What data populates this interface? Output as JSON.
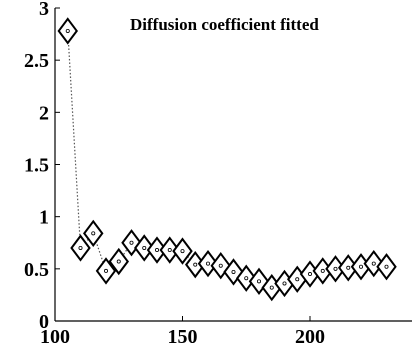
{
  "chart_data": {
    "type": "line",
    "title": "Diffusion coefficient fitted",
    "xlabel": "",
    "ylabel": "",
    "xlim": [
      100,
      240
    ],
    "ylim": [
      0,
      3
    ],
    "xticks": [
      100,
      150,
      200
    ],
    "xtick_labels": [
      "100",
      "150",
      "200"
    ],
    "yticks": [
      0,
      0.5,
      1,
      1.5,
      2,
      2.5,
      3
    ],
    "ytick_labels": [
      "0",
      "0.5",
      "1",
      "1.5",
      "2",
      "2.5",
      "3"
    ],
    "grid": false,
    "legend": "none",
    "marker": "diamond",
    "line_style": "dotted",
    "series": [
      {
        "x": [
          105,
          110,
          115,
          120,
          125,
          130,
          135,
          140,
          145,
          150,
          155,
          160,
          165,
          170,
          175,
          180,
          185,
          190,
          195,
          200,
          205,
          210,
          215,
          220,
          225,
          230
        ],
        "y": [
          2.78,
          0.7,
          0.84,
          0.48,
          0.57,
          0.75,
          0.7,
          0.68,
          0.68,
          0.67,
          0.54,
          0.55,
          0.53,
          0.47,
          0.41,
          0.38,
          0.32,
          0.36,
          0.4,
          0.45,
          0.48,
          0.5,
          0.51,
          0.52,
          0.55,
          0.52
        ]
      }
    ],
    "colors": {
      "marker_edge": "#000000",
      "marker_fill": "#ffffff",
      "line": "#555555"
    }
  }
}
